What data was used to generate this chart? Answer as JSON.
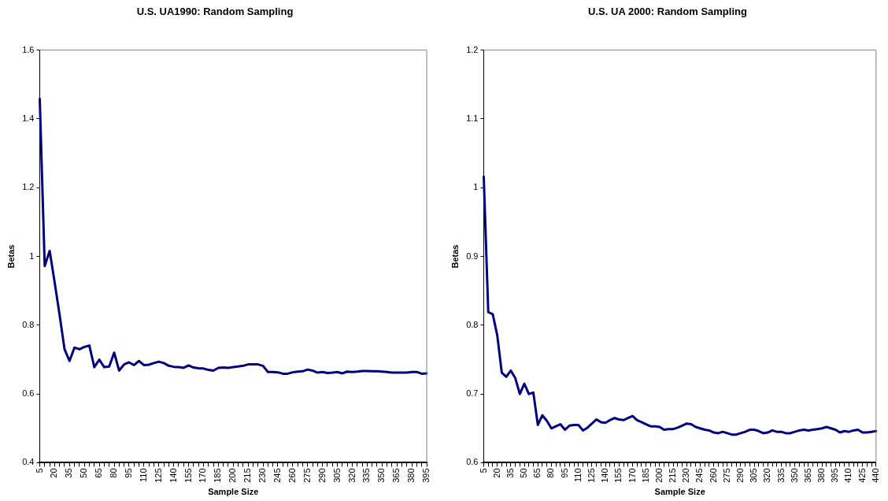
{
  "chart_data": [
    {
      "type": "line",
      "title": "U.S. UA1990: Random Sampling",
      "xlabel": "Sample Size",
      "ylabel": "Betas",
      "color": "#000080",
      "legend": false,
      "categories": [
        "5",
        null,
        null,
        "20",
        null,
        null,
        "35",
        null,
        null,
        "50",
        null,
        null,
        "65",
        null,
        null,
        "80",
        null,
        null,
        "95",
        null,
        null,
        "110",
        null,
        null,
        "125",
        null,
        null,
        "140",
        null,
        null,
        "155",
        null,
        null,
        "170",
        null,
        null,
        "185",
        null,
        null,
        "200",
        null,
        null,
        "215",
        null,
        null,
        "230",
        null,
        null,
        "245",
        null,
        null,
        "260",
        null,
        null,
        "275",
        null,
        null,
        "290",
        null,
        null,
        "305",
        null,
        null,
        "320",
        null,
        null,
        "335",
        null,
        null,
        "350",
        null,
        null,
        "365",
        null,
        null,
        "380",
        null,
        null,
        "395"
      ],
      "values": [
        1.458,
        0.972,
        1.016,
        0.925,
        0.83,
        0.73,
        0.696,
        0.735,
        0.73,
        0.737,
        0.741,
        0.678,
        0.7,
        0.678,
        0.68,
        0.72,
        0.668,
        0.686,
        0.692,
        0.684,
        0.696,
        0.684,
        0.685,
        0.69,
        0.694,
        0.69,
        0.682,
        0.679,
        0.678,
        0.676,
        0.683,
        0.677,
        0.675,
        0.674,
        0.67,
        0.668,
        0.676,
        0.677,
        0.676,
        0.678,
        0.68,
        0.682,
        0.686,
        0.686,
        0.686,
        0.682,
        0.664,
        0.664,
        0.663,
        0.659,
        0.659,
        0.663,
        0.665,
        0.666,
        0.671,
        0.668,
        0.662,
        0.664,
        0.661,
        0.662,
        0.664,
        0.66,
        0.665,
        0.664,
        0.665,
        0.667,
        0.667,
        0.666,
        0.666,
        0.665,
        0.664,
        0.662,
        0.662,
        0.662,
        0.662,
        0.664,
        0.664,
        0.659,
        0.66
      ],
      "ylim": [
        0.4,
        1.6
      ],
      "yticks": [
        0.4,
        0.6,
        0.8,
        1,
        1.2,
        1.4,
        1.6
      ]
    },
    {
      "type": "line",
      "title": "U.S. UA 2000: Random Sampling",
      "xlabel": "Sample Size",
      "ylabel": "Betas",
      "color": "#000080",
      "legend": false,
      "categories": [
        "5",
        null,
        null,
        "20",
        null,
        null,
        "35",
        null,
        null,
        "50",
        null,
        null,
        "65",
        null,
        null,
        "80",
        null,
        null,
        "95",
        null,
        null,
        "110",
        null,
        null,
        "125",
        null,
        null,
        "140",
        null,
        null,
        "155",
        null,
        null,
        "170",
        null,
        null,
        "185",
        null,
        null,
        "200",
        null,
        null,
        "215",
        null,
        null,
        "230",
        null,
        null,
        "245",
        null,
        null,
        "260",
        null,
        null,
        "275",
        null,
        null,
        "290",
        null,
        null,
        "305",
        null,
        null,
        "320",
        null,
        null,
        "335",
        null,
        null,
        "350",
        null,
        null,
        "365",
        null,
        null,
        "380",
        null,
        null,
        "395",
        null,
        null,
        "410",
        null,
        null,
        "425",
        null,
        null,
        "440"
      ],
      "values": [
        1.016,
        0.819,
        0.816,
        0.785,
        0.731,
        0.725,
        0.734,
        0.723,
        0.7,
        0.715,
        0.7,
        0.702,
        0.655,
        0.669,
        0.661,
        0.65,
        0.653,
        0.656,
        0.648,
        0.654,
        0.655,
        0.655,
        0.647,
        0.651,
        0.657,
        0.663,
        0.659,
        0.658,
        0.662,
        0.665,
        0.663,
        0.662,
        0.665,
        0.668,
        0.662,
        0.659,
        0.656,
        0.653,
        0.653,
        0.652,
        0.648,
        0.649,
        0.649,
        0.651,
        0.654,
        0.657,
        0.656,
        0.652,
        0.65,
        0.648,
        0.647,
        0.644,
        0.643,
        0.645,
        0.643,
        0.641,
        0.641,
        0.643,
        0.645,
        0.648,
        0.648,
        0.646,
        0.643,
        0.644,
        0.647,
        0.645,
        0.645,
        0.643,
        0.643,
        0.645,
        0.647,
        0.648,
        0.647,
        0.648,
        0.649,
        0.65,
        0.652,
        0.65,
        0.648,
        0.644,
        0.646,
        0.645,
        0.647,
        0.648,
        0.644,
        0.644,
        0.645,
        0.646
      ],
      "ylim": [
        0.6,
        1.2
      ],
      "yticks": [
        0.6,
        0.7,
        0.8,
        0.9,
        1,
        1.1,
        1.2
      ]
    }
  ]
}
